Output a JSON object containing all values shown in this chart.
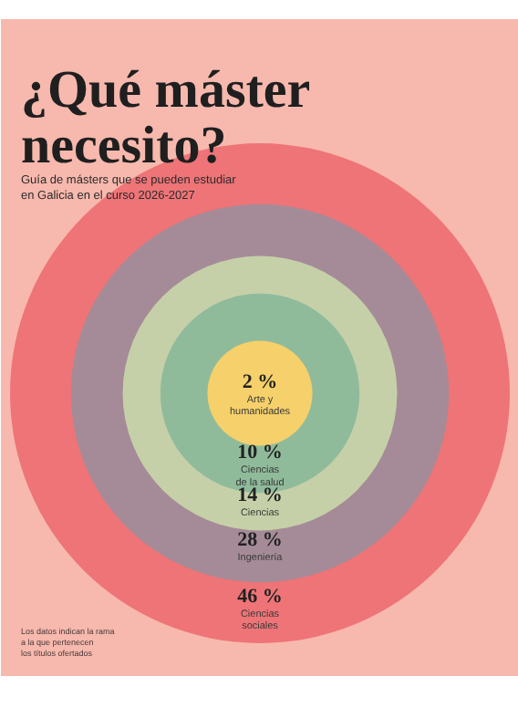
{
  "chart_data": {
    "type": "other",
    "title": "¿Qué máster\nnecesito?",
    "subtitle": "Guía de másters que se pueden estudiar\nen Galicia en el curso 2026-2027",
    "categories": [
      "Arte y\nhumanidades",
      "Ciencias\nde la salud",
      "Ciencias",
      "Ingeniería",
      "Ciencias\nsociales"
    ],
    "values": [
      2,
      10,
      14,
      28,
      46
    ],
    "value_labels": [
      "2 %",
      "10 %",
      "14 %",
      "28 %",
      "46 %"
    ],
    "colors": [
      "#f6d06a",
      "#8fbb9b",
      "#c6d0a8",
      "#a58b97",
      "#ee7477"
    ],
    "annotations": [
      "Los datos indican la rama\na la que pertenecen\nlos títulos ofertados"
    ]
  }
}
